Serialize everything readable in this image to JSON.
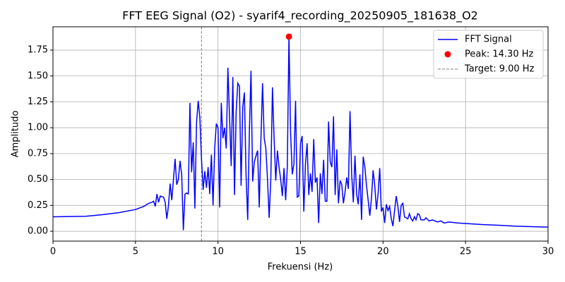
{
  "chart_data": {
    "type": "line",
    "title": "FFT EEG Signal (O2) - syarif4_recording_20250905_181638_O2",
    "x_label": "Frekuensi (Hz)",
    "y_label": "Amplitudo",
    "xlim": [
      0,
      30
    ],
    "ylim": [
      -0.095,
      1.975
    ],
    "xticks": [
      0,
      5,
      10,
      15,
      20,
      25,
      30
    ],
    "yticks": [
      {
        "value": 0,
        "label": "0.00"
      },
      {
        "value": 0.25,
        "label": "0.25"
      },
      {
        "value": 0.5,
        "label": "0.50"
      },
      {
        "value": 0.75,
        "label": "0.75"
      },
      {
        "value": 1,
        "label": "1.00"
      },
      {
        "value": 1.25,
        "label": "1.25"
      },
      {
        "value": 1.5,
        "label": "1.50"
      },
      {
        "value": 1.75,
        "label": "1.75"
      }
    ],
    "grid": true,
    "legend": "upper right",
    "series": [
      {
        "name": "FFT Signal",
        "color": "#0000ff",
        "x": [
          0,
          2,
          3,
          4,
          5,
          5.5,
          5.8,
          6.0,
          6.1,
          6.2,
          6.3,
          6.4,
          6.5,
          6.7,
          6.8,
          6.9,
          7.0,
          7.1,
          7.2,
          7.4,
          7.5,
          7.6,
          7.7,
          7.8,
          7.9,
          8.0,
          8.1,
          8.2,
          8.3,
          8.4,
          8.5,
          8.6,
          8.7,
          8.8,
          8.9,
          9.0,
          9.1,
          9.2,
          9.3,
          9.4,
          9.5,
          9.6,
          9.7,
          9.8,
          9.9,
          10.0,
          10.1,
          10.2,
          10.3,
          10.4,
          10.5,
          10.6,
          10.7,
          10.8,
          10.9,
          11.0,
          11.1,
          11.2,
          11.3,
          11.4,
          11.5,
          11.6,
          11.7,
          11.8,
          11.9,
          12.0,
          12.1,
          12.2,
          12.4,
          12.5,
          12.6,
          12.7,
          12.8,
          12.9,
          13.0,
          13.1,
          13.2,
          13.3,
          13.4,
          13.5,
          13.6,
          13.7,
          13.8,
          13.9,
          14.0,
          14.1,
          14.2,
          14.3,
          14.4,
          14.5,
          14.6,
          14.7,
          14.8,
          14.9,
          15.0,
          15.1,
          15.2,
          15.3,
          15.4,
          15.5,
          15.6,
          15.7,
          15.8,
          15.9,
          16.0,
          16.1,
          16.2,
          16.3,
          16.4,
          16.5,
          16.6,
          16.7,
          16.8,
          16.9,
          17.0,
          17.1,
          17.2,
          17.3,
          17.4,
          17.5,
          17.6,
          17.7,
          17.8,
          17.9,
          18.0,
          18.1,
          18.2,
          18.3,
          18.4,
          18.5,
          18.6,
          18.7,
          18.8,
          18.9,
          19.0,
          19.1,
          19.2,
          19.3,
          19.4,
          19.5,
          19.6,
          19.7,
          19.8,
          19.9,
          20.0,
          20.1,
          20.2,
          20.3,
          20.4,
          20.5,
          20.6,
          20.7,
          20.8,
          20.9,
          21.0,
          21.1,
          21.2,
          21.3,
          21.4,
          21.5,
          21.6,
          21.7,
          21.8,
          21.9,
          22.0,
          22.1,
          22.2,
          22.3,
          22.5,
          22.6,
          22.8,
          23.0,
          23.3,
          23.5,
          23.7,
          24,
          24.5,
          25,
          26,
          27,
          28,
          29,
          30
        ],
        "values": [
          0.14,
          0.145,
          0.16,
          0.18,
          0.21,
          0.24,
          0.27,
          0.28,
          0.29,
          0.24,
          0.36,
          0.28,
          0.34,
          0.33,
          0.28,
          0.12,
          0.25,
          0.46,
          0.3,
          0.7,
          0.45,
          0.5,
          0.68,
          0.55,
          0.01,
          0.36,
          0.37,
          0.36,
          1.24,
          0.57,
          0.86,
          0.22,
          1.05,
          1.26,
          1.1,
          0.7,
          0.4,
          0.58,
          0.42,
          0.62,
          0.36,
          0.74,
          0.25,
          0.8,
          1.04,
          1.0,
          0.23,
          1.24,
          0.9,
          1.0,
          0.8,
          1.58,
          1.1,
          0.63,
          1.49,
          0.35,
          1.15,
          1.43,
          1.4,
          0.44,
          1.2,
          1.34,
          0.55,
          0.11,
          0.95,
          1.55,
          0.48,
          0.67,
          0.78,
          0.23,
          0.88,
          1.43,
          0.9,
          0.8,
          0.5,
          0.13,
          0.5,
          1.39,
          0.9,
          0.49,
          0.78,
          0.62,
          0.5,
          0.34,
          0.61,
          0.3,
          0.62,
          1.88,
          0.95,
          0.55,
          0.65,
          1.26,
          0.33,
          0.34,
          0.85,
          0.92,
          0.19,
          0.65,
          0.85,
          0.35,
          0.56,
          0.38,
          0.89,
          0.47,
          0.52,
          0.08,
          0.56,
          0.36,
          0.69,
          0.29,
          0.29,
          1.06,
          0.67,
          0.62,
          1.11,
          0.35,
          0.79,
          0.27,
          0.49,
          0.45,
          0.27,
          0.38,
          0.52,
          0.41,
          1.16,
          0.55,
          0.28,
          0.73,
          0.36,
          0.26,
          0.55,
          0.11,
          0.72,
          0.62,
          0.44,
          0.3,
          0.15,
          0.32,
          0.59,
          0.44,
          0.21,
          0.36,
          0.61,
          0.19,
          0.23,
          0.08,
          0.26,
          0.2,
          0.24,
          0.12,
          0.05,
          0.2,
          0.34,
          0.24,
          0.09,
          0.25,
          0.27,
          0.14,
          0.13,
          0.12,
          0.17,
          0.12,
          0.1,
          0.14,
          0.11,
          0.17,
          0.16,
          0.11,
          0.11,
          0.13,
          0.1,
          0.11,
          0.09,
          0.1,
          0.08,
          0.09,
          0.08,
          0.075,
          0.065,
          0.058,
          0.05,
          0.045,
          0.04
        ]
      }
    ],
    "peak": {
      "name": "Peak: 14.30 Hz",
      "color": "#ff0000",
      "x": 14.3,
      "value": 1.88
    },
    "target": {
      "name": "Target: 9.00 Hz",
      "color": "#808080",
      "x": 9.0
    }
  }
}
